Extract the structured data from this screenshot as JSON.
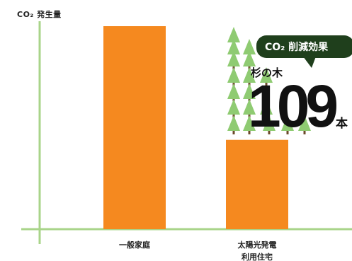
{
  "chart_data": {
    "type": "bar",
    "ylabel": "CO₂ 発生量",
    "categories": [
      "一般家庭",
      "太陽光発電利用住宅"
    ],
    "category_lines": [
      [
        "一般家庭"
      ],
      [
        "太陽光発電",
        "利用住宅"
      ]
    ],
    "values": [
      100,
      44
    ],
    "ylim": [
      0,
      105
    ],
    "grid": false,
    "colors": {
      "bar": "#f5891f",
      "axis": "#a9d48a",
      "tree": "#8fcb72",
      "trunk": "#6b4a2b",
      "callout": "#1f3f1c"
    }
  },
  "annotation": {
    "callout": "CO₂ 削減効果",
    "tree_label": "杉の木",
    "trees": 109,
    "unit": "本"
  }
}
